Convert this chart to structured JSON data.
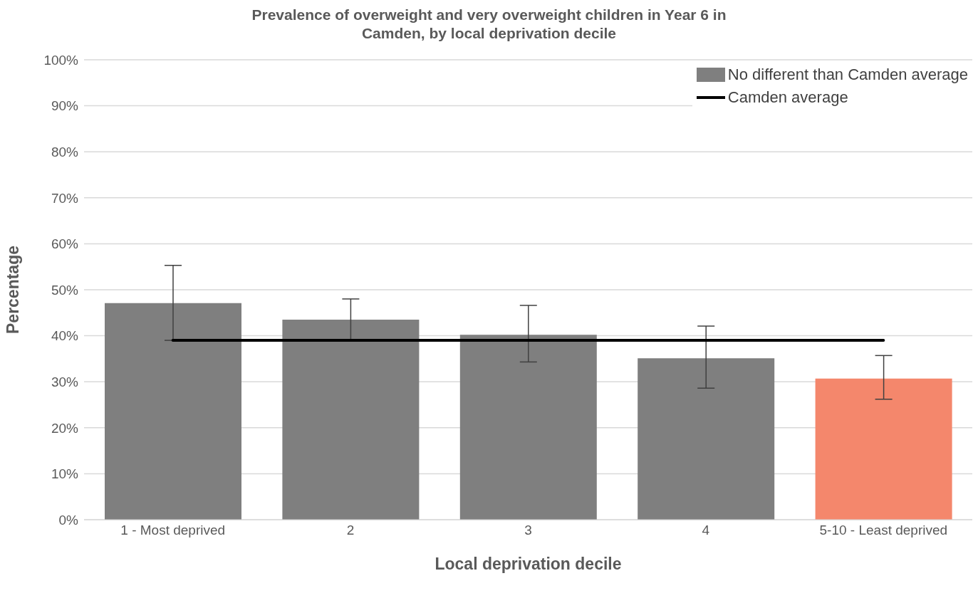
{
  "chart_data": {
    "type": "bar",
    "title": "Prevalence of overweight and very overweight children in Year 6 in Camden, by local deprivation decile",
    "xlabel": "Local deprivation decile",
    "ylabel": "Percentage",
    "categories": [
      "1 - Most deprived",
      "2",
      "3",
      "4",
      "5-10 - Least deprived"
    ],
    "series": [
      {
        "name": "No different than Camden average",
        "color": "#7f7f7f",
        "colors": [
          "#7f7f7f",
          "#7f7f7f",
          "#7f7f7f",
          "#7f7f7f",
          "#f4876c"
        ],
        "values": [
          47.1,
          43.5,
          40.2,
          35.1,
          30.7
        ],
        "errors": [
          [
            39.0,
            55.3
          ],
          [
            39.0,
            48.0
          ],
          [
            34.3,
            46.6
          ],
          [
            28.6,
            42.1
          ],
          [
            26.2,
            35.7
          ]
        ]
      },
      {
        "type": "line",
        "name": "Camden average",
        "color": "#000000",
        "values": [
          39.0,
          39.0,
          39.0,
          39.0,
          39.0
        ]
      }
    ],
    "ylim": [
      0,
      100
    ],
    "yticks": [
      {
        "value": 0,
        "label": "0%"
      },
      {
        "value": 10,
        "label": "10%"
      },
      {
        "value": 20,
        "label": "20%"
      },
      {
        "value": 30,
        "label": "30%"
      },
      {
        "value": 40,
        "label": "40%"
      },
      {
        "value": 50,
        "label": "50%"
      },
      {
        "value": 60,
        "label": "60%"
      },
      {
        "value": 70,
        "label": "70%"
      },
      {
        "value": 80,
        "label": "80%"
      },
      {
        "value": 90,
        "label": "90%"
      },
      {
        "value": 100,
        "label": "100%"
      }
    ],
    "grid": "y",
    "legend": "top right",
    "marker": "none",
    "line_style": "solid"
  }
}
